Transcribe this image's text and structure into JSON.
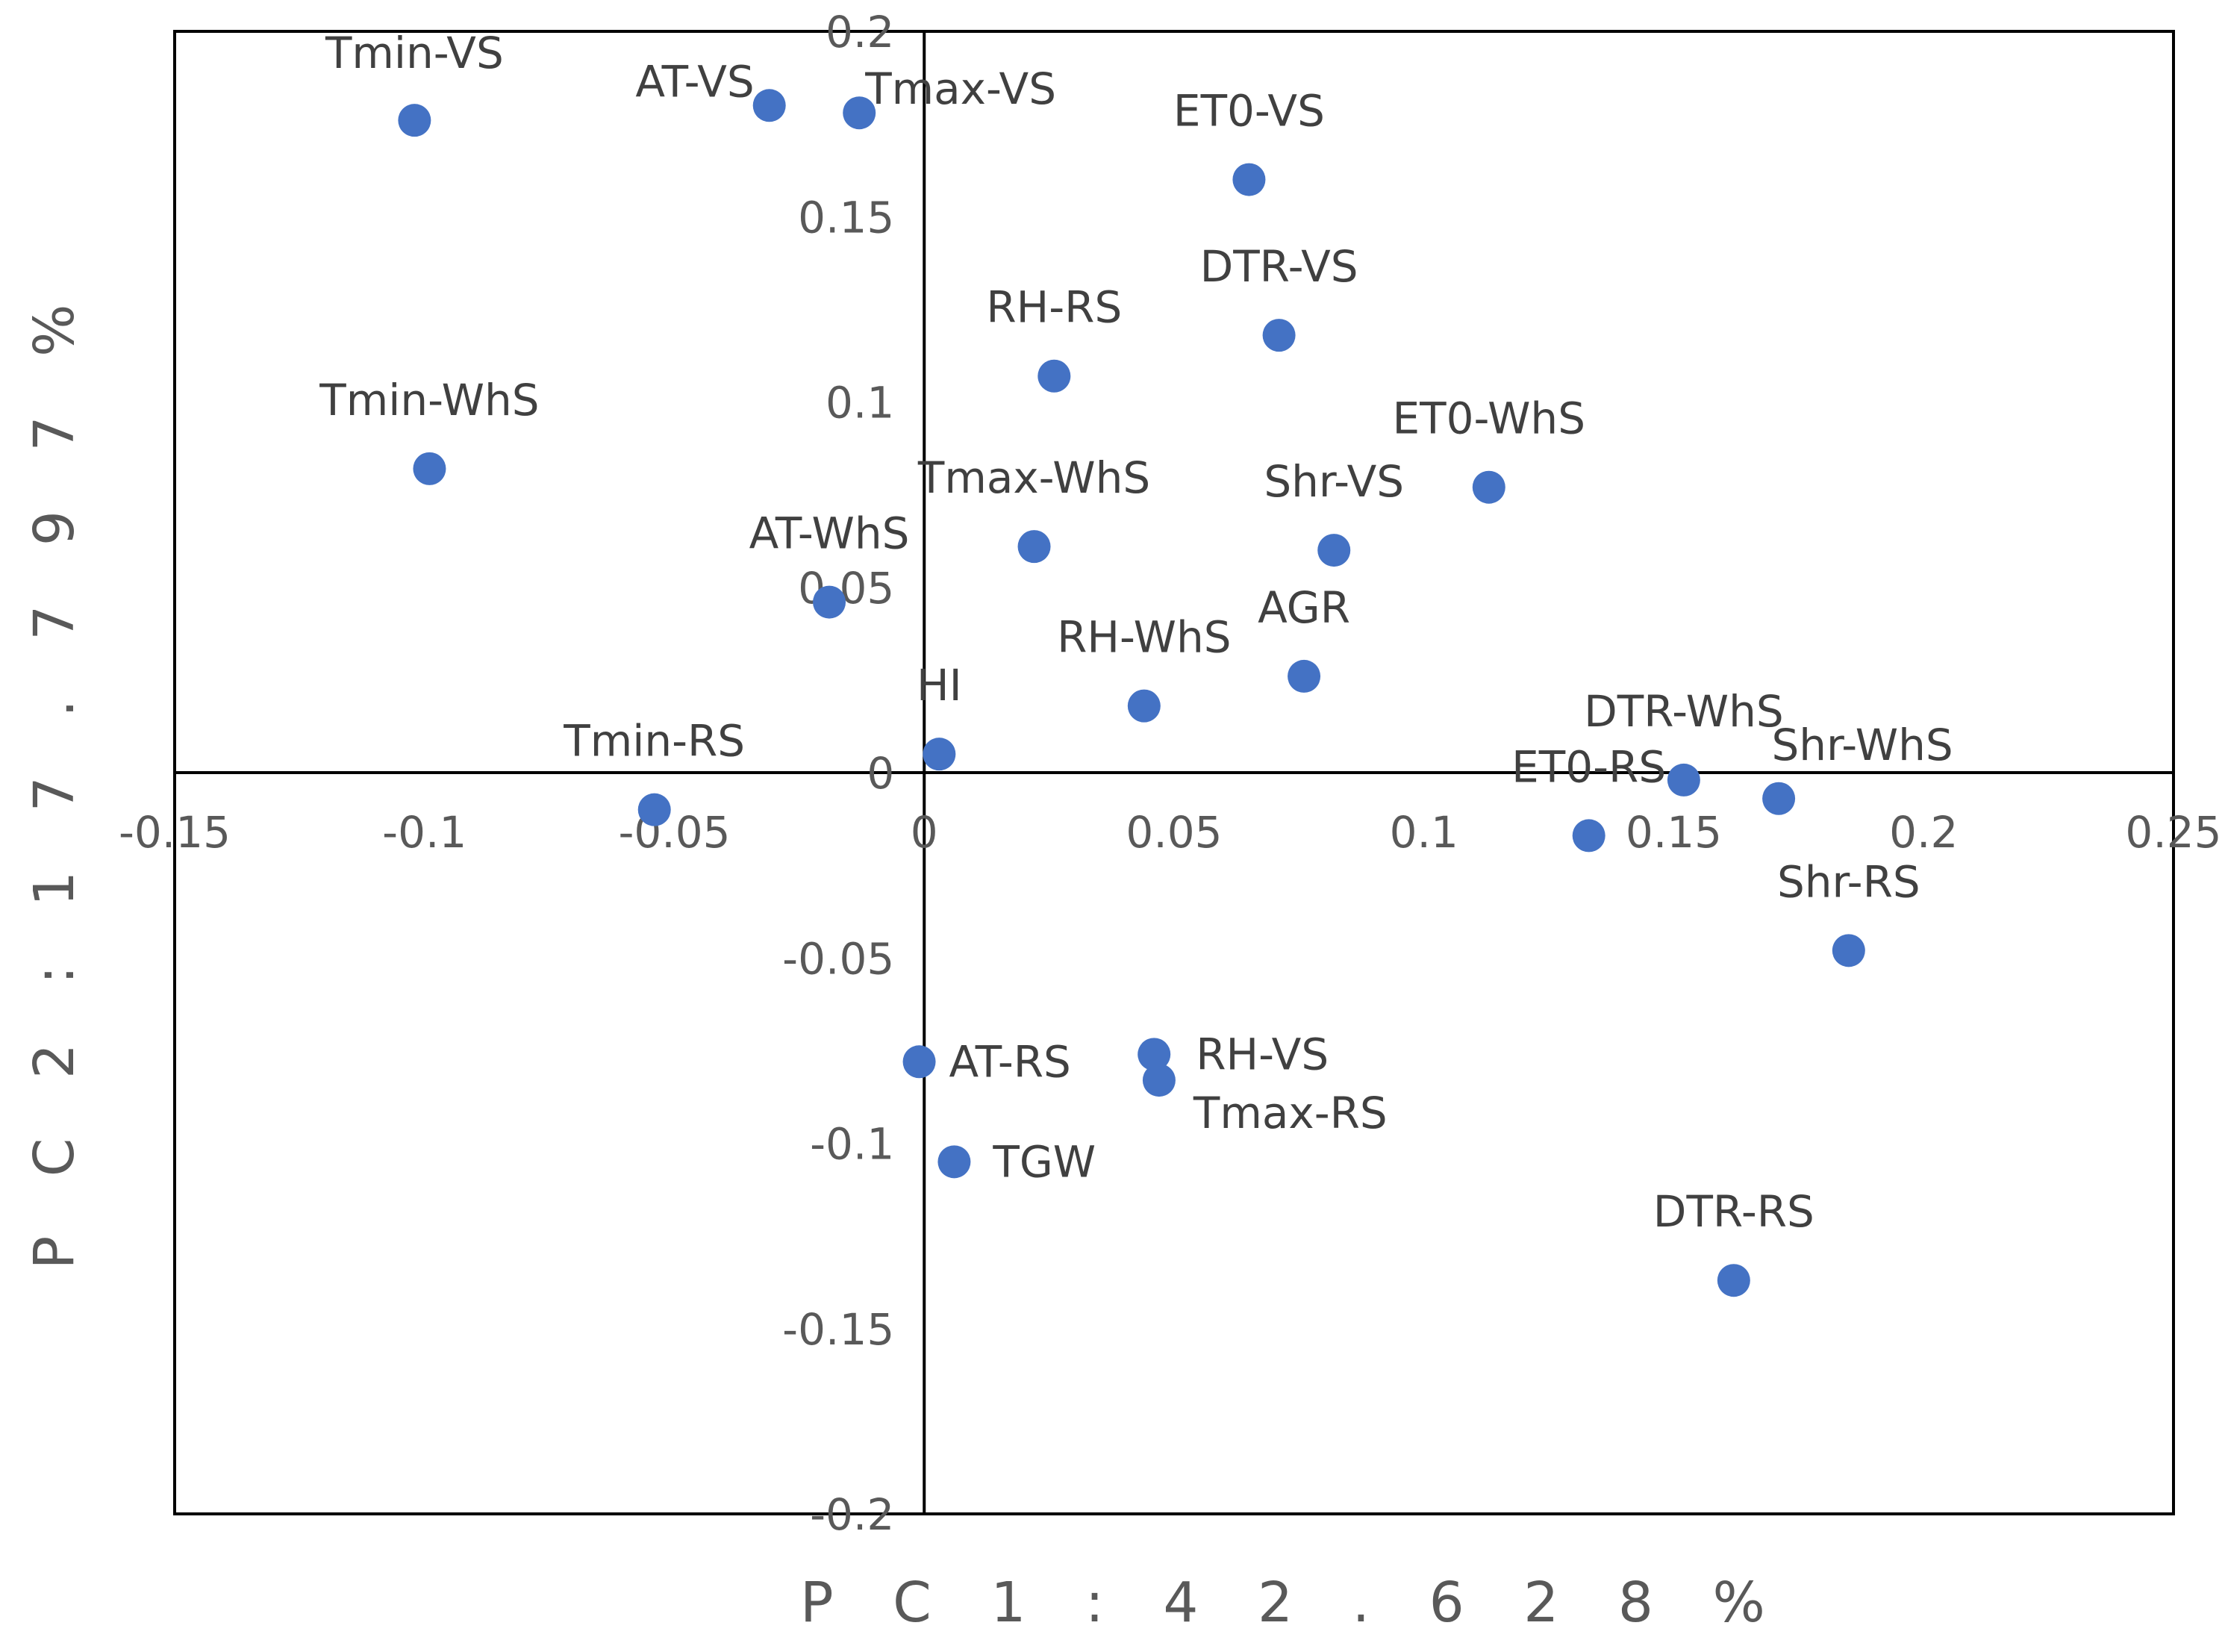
{
  "chart_data": {
    "type": "scatter",
    "title": "",
    "xlabel": "P C 1 :   4 2 . 6 2 8 %",
    "ylabel": "P C 2 :   1 7 . 7 9 7 %",
    "xlim": [
      -0.15,
      0.25
    ],
    "ylim": [
      -0.2,
      0.2
    ],
    "x_ticks": [
      "-0.15",
      "-0.1",
      "-0.05",
      "0",
      "0.05",
      "0.1",
      "0.15",
      "0.2",
      "0.25"
    ],
    "y_ticks": [
      "0.2",
      "0.15",
      "0.1",
      "0.05",
      "0",
      "-0.05",
      "-0.1",
      "-0.15",
      "-0.2"
    ],
    "marker_color": "#4472C4",
    "points": [
      {
        "label": "Tmin-VS",
        "x": -0.102,
        "y": 0.176
      },
      {
        "label": "AT-VS",
        "x": -0.031,
        "y": 0.18
      },
      {
        "label": "Tmax-VS",
        "x": -0.013,
        "y": 0.178
      },
      {
        "label": "ET0-VS",
        "x": 0.065,
        "y": 0.16
      },
      {
        "label": "DTR-VS",
        "x": 0.071,
        "y": 0.118
      },
      {
        "label": "RH-RS",
        "x": 0.026,
        "y": 0.107
      },
      {
        "label": "Tmin-WhS",
        "x": -0.099,
        "y": 0.082
      },
      {
        "label": "ET0-WhS",
        "x": 0.113,
        "y": 0.077
      },
      {
        "label": "Tmax-WhS",
        "x": 0.022,
        "y": 0.061
      },
      {
        "label": "Shr-VS",
        "x": 0.082,
        "y": 0.06
      },
      {
        "label": "AT-WhS",
        "x": -0.019,
        "y": 0.046
      },
      {
        "label": "AGR",
        "x": 0.076,
        "y": 0.026
      },
      {
        "label": "RH-WhS",
        "x": 0.044,
        "y": 0.018
      },
      {
        "label": "HI",
        "x": 0.003,
        "y": 0.005
      },
      {
        "label": "Tmin-RS",
        "x": -0.054,
        "y": -0.01
      },
      {
        "label": "DTR-WhS",
        "x": 0.152,
        "y": -0.002
      },
      {
        "label": "ET0-RS",
        "x": 0.133,
        "y": -0.017
      },
      {
        "label": "Shr-WhS",
        "x": 0.171,
        "y": -0.007
      },
      {
        "label": "Shr-RS",
        "x": 0.185,
        "y": -0.048
      },
      {
        "label": "AT-RS",
        "x": -0.001,
        "y": -0.078
      },
      {
        "label": "RH-VS",
        "x": 0.046,
        "y": -0.076
      },
      {
        "label": "Tmax-RS",
        "x": 0.047,
        "y": -0.083
      },
      {
        "label": "TGW",
        "x": 0.006,
        "y": -0.105
      },
      {
        "label": "DTR-RS",
        "x": 0.162,
        "y": -0.137
      }
    ]
  }
}
